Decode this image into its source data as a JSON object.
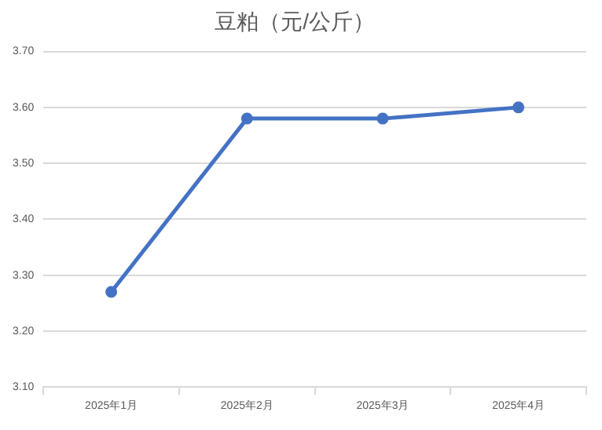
{
  "chart_data": {
    "type": "line",
    "title": "豆粕（元/公斤）",
    "categories": [
      "2025年1月",
      "2025年2月",
      "2025年3月",
      "2025年4月"
    ],
    "series": [
      {
        "color": "#4472c4",
        "values": [
          3.27,
          3.58,
          3.58,
          3.6
        ]
      }
    ],
    "ylim": [
      3.1,
      3.7
    ],
    "yticks": [
      {
        "value": 3.1,
        "label": "3.10"
      },
      {
        "value": 3.2,
        "label": "3.20"
      },
      {
        "value": 3.3,
        "label": "3.30"
      },
      {
        "value": 3.4,
        "label": "3.40"
      },
      {
        "value": 3.5,
        "label": "3.50"
      },
      {
        "value": 3.6,
        "label": "3.60"
      },
      {
        "value": 3.7,
        "label": "3.70"
      }
    ],
    "grid": "y",
    "legend": false,
    "marker": "circle",
    "line_style": "solid"
  }
}
